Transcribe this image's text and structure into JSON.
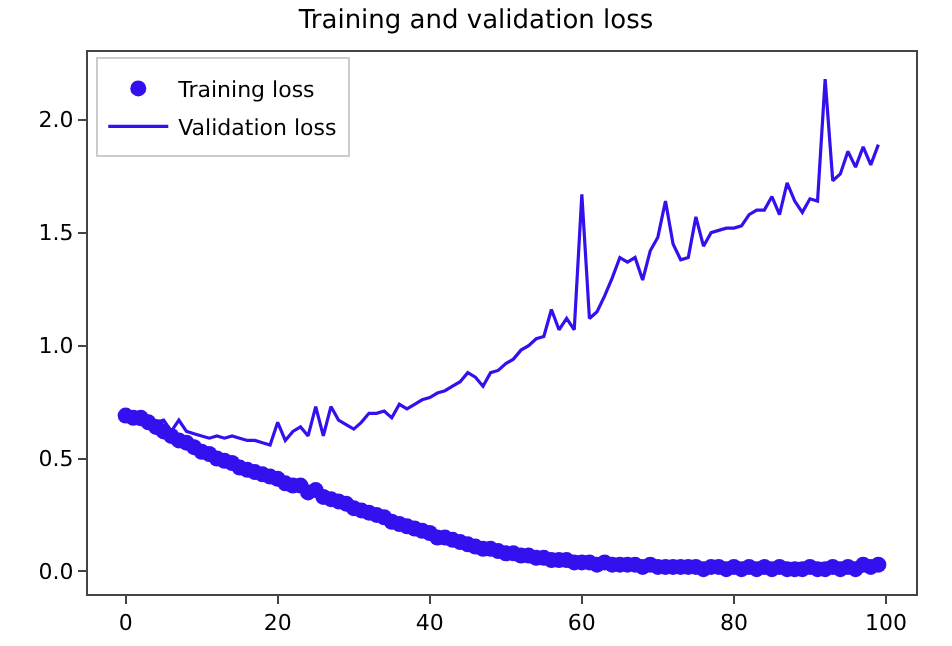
{
  "chart_data": {
    "type": "line",
    "title": "Training and validation loss",
    "legend": "top left",
    "grid": false,
    "x": [
      0,
      1,
      2,
      3,
      4,
      5,
      6,
      7,
      8,
      9,
      10,
      11,
      12,
      13,
      14,
      15,
      16,
      17,
      18,
      19,
      20,
      21,
      22,
      23,
      24,
      25,
      26,
      27,
      28,
      29,
      30,
      31,
      32,
      33,
      34,
      35,
      36,
      37,
      38,
      39,
      40,
      41,
      42,
      43,
      44,
      45,
      46,
      47,
      48,
      49,
      50,
      51,
      52,
      53,
      54,
      55,
      56,
      57,
      58,
      59,
      60,
      61,
      62,
      63,
      64,
      65,
      66,
      67,
      68,
      69,
      70,
      71,
      72,
      73,
      74,
      75,
      76,
      77,
      78,
      79,
      80,
      81,
      82,
      83,
      84,
      85,
      86,
      87,
      88,
      89,
      90,
      91,
      92,
      93,
      94,
      95,
      96,
      97,
      98,
      99
    ],
    "xlim": [
      -4.95,
      103.95
    ],
    "xticks": [
      0,
      20,
      40,
      60,
      80,
      100
    ],
    "ylim": [
      -0.1,
      2.3
    ],
    "yticks": [
      {
        "value": 0,
        "label": "0.0"
      },
      {
        "value": 0.5,
        "label": "0.5"
      },
      {
        "value": 1,
        "label": "1.0"
      },
      {
        "value": 1.5,
        "label": "1.5"
      },
      {
        "value": 2,
        "label": "2.0"
      }
    ],
    "series": [
      {
        "name": "Training loss",
        "type": "scatter",
        "marker": "circle",
        "color": "#3311ee",
        "values": [
          0.69,
          0.68,
          0.68,
          0.66,
          0.64,
          0.62,
          0.6,
          0.58,
          0.57,
          0.55,
          0.53,
          0.52,
          0.5,
          0.49,
          0.48,
          0.46,
          0.45,
          0.44,
          0.43,
          0.42,
          0.41,
          0.39,
          0.38,
          0.38,
          0.35,
          0.36,
          0.33,
          0.32,
          0.31,
          0.3,
          0.28,
          0.27,
          0.26,
          0.25,
          0.24,
          0.22,
          0.21,
          0.2,
          0.19,
          0.18,
          0.17,
          0.15,
          0.15,
          0.14,
          0.13,
          0.12,
          0.11,
          0.1,
          0.1,
          0.09,
          0.08,
          0.08,
          0.07,
          0.07,
          0.06,
          0.06,
          0.05,
          0.05,
          0.05,
          0.04,
          0.04,
          0.04,
          0.03,
          0.04,
          0.03,
          0.03,
          0.03,
          0.03,
          0.02,
          0.03,
          0.02,
          0.02,
          0.02,
          0.02,
          0.02,
          0.02,
          0.01,
          0.02,
          0.02,
          0.01,
          0.02,
          0.01,
          0.02,
          0.01,
          0.02,
          0.01,
          0.02,
          0.01,
          0.01,
          0.01,
          0.02,
          0.01,
          0.01,
          0.02,
          0.01,
          0.02,
          0.01,
          0.03,
          0.02,
          0.03
        ]
      },
      {
        "name": "Validation loss",
        "type": "line",
        "marker": "none",
        "line_style": "solid",
        "color": "#3311ee",
        "values": [
          0.67,
          0.66,
          0.65,
          0.65,
          0.66,
          0.67,
          0.62,
          0.67,
          0.62,
          0.61,
          0.6,
          0.59,
          0.6,
          0.59,
          0.6,
          0.59,
          0.58,
          0.58,
          0.57,
          0.56,
          0.66,
          0.58,
          0.62,
          0.64,
          0.6,
          0.73,
          0.6,
          0.73,
          0.67,
          0.65,
          0.63,
          0.66,
          0.7,
          0.7,
          0.71,
          0.68,
          0.74,
          0.72,
          0.74,
          0.76,
          0.77,
          0.79,
          0.8,
          0.82,
          0.84,
          0.88,
          0.86,
          0.82,
          0.88,
          0.89,
          0.92,
          0.94,
          0.98,
          1.0,
          1.03,
          1.04,
          1.16,
          1.07,
          1.12,
          1.07,
          1.67,
          1.12,
          1.15,
          1.22,
          1.3,
          1.39,
          1.37,
          1.39,
          1.29,
          1.42,
          1.48,
          1.64,
          1.45,
          1.38,
          1.39,
          1.57,
          1.44,
          1.5,
          1.51,
          1.52,
          1.52,
          1.53,
          1.58,
          1.6,
          1.6,
          1.66,
          1.58,
          1.72,
          1.64,
          1.59,
          1.65,
          1.64,
          2.18,
          1.73,
          1.76,
          1.86,
          1.79,
          1.88,
          1.8,
          1.89
        ]
      }
    ]
  }
}
